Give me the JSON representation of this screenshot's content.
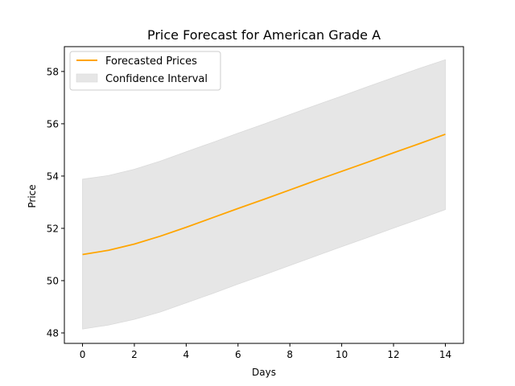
{
  "chart_data": {
    "type": "line",
    "title": "Price Forecast for American Grade A",
    "xlabel": "Days",
    "ylabel": "Price",
    "xlim": [
      -0.7,
      14.7
    ],
    "ylim": [
      47.6,
      58.95
    ],
    "x_ticks": [
      0,
      2,
      4,
      6,
      8,
      10,
      12,
      14
    ],
    "y_ticks": [
      48,
      50,
      52,
      54,
      56,
      58
    ],
    "grid": false,
    "legend_position": "top-left",
    "x": [
      0,
      1,
      2,
      3,
      4,
      5,
      6,
      7,
      8,
      9,
      10,
      11,
      12,
      13,
      14
    ],
    "series": [
      {
        "name": "Forecasted Prices",
        "color": "#ffa500",
        "values": [
          51.0,
          51.16,
          51.4,
          51.7,
          52.04,
          52.4,
          52.76,
          53.11,
          53.47,
          53.83,
          54.18,
          54.53,
          54.89,
          55.24,
          55.6
        ]
      }
    ],
    "confidence_interval": {
      "name": "Confidence Interval",
      "color": "#e6e6e6",
      "lower": [
        48.15,
        48.3,
        48.52,
        48.8,
        49.15,
        49.5,
        49.87,
        50.22,
        50.58,
        50.94,
        51.3,
        51.65,
        52.01,
        52.36,
        52.72
      ],
      "upper": [
        53.88,
        54.02,
        54.26,
        54.57,
        54.93,
        55.28,
        55.64,
        55.99,
        56.35,
        56.71,
        57.06,
        57.42,
        57.77,
        58.12,
        58.45
      ]
    }
  }
}
